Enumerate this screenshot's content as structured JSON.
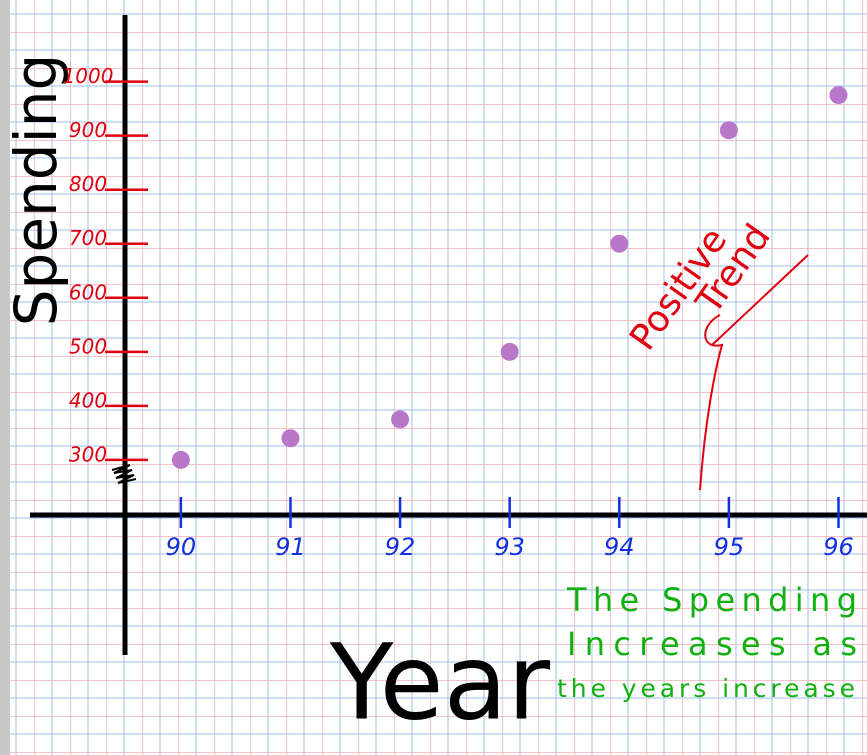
{
  "chart_data": {
    "type": "scatter",
    "x_label": "Year",
    "y_label": "Spending",
    "x": [
      90,
      91,
      92,
      93,
      94,
      95,
      96
    ],
    "series": [
      {
        "color": "#b877c8",
        "values": [
          300,
          340,
          375,
          500,
          700,
          910,
          975
        ]
      }
    ],
    "xlim": [
      88.35,
      96.26
    ],
    "ylim": [
      -246,
      1151
    ],
    "xticks": [
      90,
      91,
      92,
      93,
      94,
      95,
      96
    ],
    "yticks": [
      300,
      400,
      500,
      600,
      700,
      800,
      900,
      1000
    ],
    "annotations": [
      [
        "Positive",
        "Trend"
      ],
      [
        "The Spending",
        "Increases as",
        "the years increase"
      ]
    ]
  }
}
